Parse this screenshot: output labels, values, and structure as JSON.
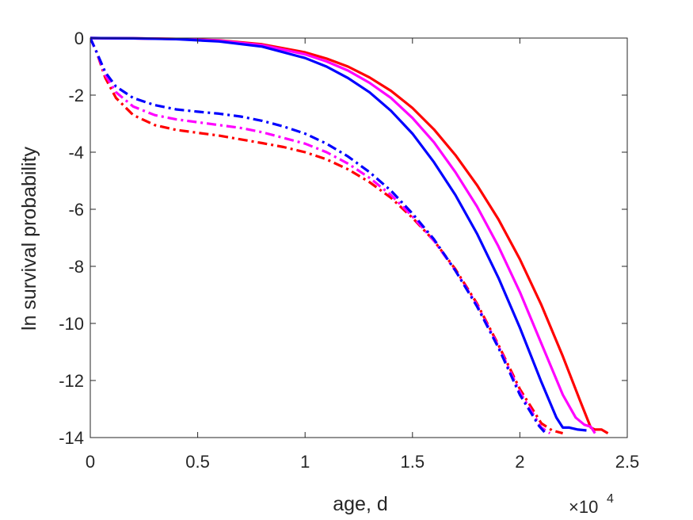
{
  "chart_data": {
    "type": "line",
    "title": "",
    "xlabel": "age, d",
    "ylabel": "ln survival probability",
    "x_exponent_label": {
      "base": "×10",
      "exp": "4"
    },
    "xlim": [
      0,
      25000
    ],
    "ylim": [
      -14,
      0
    ],
    "xticks": [
      0,
      5000,
      10000,
      15000,
      20000,
      25000
    ],
    "xtick_labels": [
      "0",
      "0.5",
      "1",
      "1.5",
      "2",
      "2.5"
    ],
    "yticks": [
      0,
      -2,
      -4,
      -6,
      -8,
      -10,
      -12,
      -14
    ],
    "ytick_labels": [
      "0",
      "-2",
      "-4",
      "-6",
      "-8",
      "-10",
      "-12",
      "-14"
    ],
    "grid": false,
    "series": [
      {
        "color": "#ff0000",
        "style": "solid",
        "points": [
          [
            0,
            0
          ],
          [
            2000,
            -0.01
          ],
          [
            4000,
            -0.03
          ],
          [
            6000,
            -0.08
          ],
          [
            8000,
            -0.22
          ],
          [
            10000,
            -0.5
          ],
          [
            11000,
            -0.72
          ],
          [
            12000,
            -1.0
          ],
          [
            13000,
            -1.38
          ],
          [
            14000,
            -1.85
          ],
          [
            15000,
            -2.45
          ],
          [
            16000,
            -3.2
          ],
          [
            17000,
            -4.1
          ],
          [
            18000,
            -5.15
          ],
          [
            19000,
            -6.35
          ],
          [
            20000,
            -7.75
          ],
          [
            21000,
            -9.35
          ],
          [
            22000,
            -11.15
          ],
          [
            22800,
            -12.7
          ],
          [
            23300,
            -13.65
          ],
          [
            23500,
            -13.72
          ],
          [
            23800,
            -13.72
          ],
          [
            24100,
            -13.85
          ]
        ]
      },
      {
        "color": "#ff00ff",
        "style": "solid",
        "points": [
          [
            0,
            0
          ],
          [
            2000,
            -0.01
          ],
          [
            4000,
            -0.03
          ],
          [
            6000,
            -0.09
          ],
          [
            8000,
            -0.25
          ],
          [
            10000,
            -0.57
          ],
          [
            11000,
            -0.82
          ],
          [
            12000,
            -1.14
          ],
          [
            13000,
            -1.57
          ],
          [
            14000,
            -2.1
          ],
          [
            15000,
            -2.8
          ],
          [
            16000,
            -3.65
          ],
          [
            17000,
            -4.7
          ],
          [
            18000,
            -5.9
          ],
          [
            19000,
            -7.3
          ],
          [
            20000,
            -8.9
          ],
          [
            21000,
            -10.7
          ],
          [
            22000,
            -12.5
          ],
          [
            22600,
            -13.3
          ],
          [
            23000,
            -13.55
          ],
          [
            23300,
            -13.62
          ],
          [
            23500,
            -13.85
          ]
        ]
      },
      {
        "color": "#0000ff",
        "style": "solid",
        "points": [
          [
            0,
            0
          ],
          [
            2000,
            -0.01
          ],
          [
            4000,
            -0.04
          ],
          [
            6000,
            -0.12
          ],
          [
            8000,
            -0.3
          ],
          [
            10000,
            -0.7
          ],
          [
            11000,
            -1.0
          ],
          [
            12000,
            -1.4
          ],
          [
            13000,
            -1.9
          ],
          [
            14000,
            -2.55
          ],
          [
            15000,
            -3.35
          ],
          [
            16000,
            -4.35
          ],
          [
            17000,
            -5.5
          ],
          [
            18000,
            -6.85
          ],
          [
            19000,
            -8.4
          ],
          [
            20000,
            -10.15
          ],
          [
            21000,
            -12.05
          ],
          [
            21700,
            -13.3
          ],
          [
            22000,
            -13.65
          ],
          [
            22300,
            -13.65
          ],
          [
            22700,
            -13.72
          ],
          [
            23100,
            -13.75
          ]
        ]
      },
      {
        "color": "#ff0000",
        "style": "dashdot",
        "points": [
          [
            0,
            0
          ],
          [
            300,
            -0.5
          ],
          [
            700,
            -1.4
          ],
          [
            1200,
            -2.1
          ],
          [
            2000,
            -2.7
          ],
          [
            3000,
            -3.05
          ],
          [
            4000,
            -3.22
          ],
          [
            5000,
            -3.32
          ],
          [
            6000,
            -3.42
          ],
          [
            7000,
            -3.55
          ],
          [
            8000,
            -3.68
          ],
          [
            9000,
            -3.82
          ],
          [
            10000,
            -4.0
          ],
          [
            11000,
            -4.25
          ],
          [
            12000,
            -4.6
          ],
          [
            13000,
            -5.05
          ],
          [
            14000,
            -5.6
          ],
          [
            15000,
            -6.3
          ],
          [
            16000,
            -7.1
          ],
          [
            17000,
            -8.1
          ],
          [
            18000,
            -9.3
          ],
          [
            19000,
            -10.75
          ],
          [
            20000,
            -12.3
          ],
          [
            21000,
            -13.5
          ],
          [
            21500,
            -13.75
          ],
          [
            22000,
            -13.85
          ]
        ]
      },
      {
        "color": "#ff00ff",
        "style": "dashdot",
        "points": [
          [
            0,
            0
          ],
          [
            300,
            -0.5
          ],
          [
            700,
            -1.3
          ],
          [
            1200,
            -1.9
          ],
          [
            2000,
            -2.4
          ],
          [
            3000,
            -2.7
          ],
          [
            4000,
            -2.85
          ],
          [
            5000,
            -2.95
          ],
          [
            6000,
            -3.05
          ],
          [
            7000,
            -3.15
          ],
          [
            8000,
            -3.3
          ],
          [
            9000,
            -3.5
          ],
          [
            10000,
            -3.7
          ],
          [
            11000,
            -4.0
          ],
          [
            12000,
            -4.4
          ],
          [
            13000,
            -4.9
          ],
          [
            14000,
            -5.5
          ],
          [
            15000,
            -6.25
          ],
          [
            16000,
            -7.1
          ],
          [
            17000,
            -8.15
          ],
          [
            18000,
            -9.35
          ],
          [
            19000,
            -10.8
          ],
          [
            20000,
            -12.4
          ],
          [
            21000,
            -13.65
          ],
          [
            21400,
            -13.85
          ]
        ]
      },
      {
        "color": "#0000ff",
        "style": "dashdot",
        "points": [
          [
            0,
            0
          ],
          [
            300,
            -0.5
          ],
          [
            700,
            -1.2
          ],
          [
            1200,
            -1.7
          ],
          [
            2000,
            -2.1
          ],
          [
            3000,
            -2.35
          ],
          [
            4000,
            -2.5
          ],
          [
            5000,
            -2.58
          ],
          [
            6000,
            -2.65
          ],
          [
            7000,
            -2.75
          ],
          [
            8000,
            -2.9
          ],
          [
            9000,
            -3.1
          ],
          [
            10000,
            -3.35
          ],
          [
            11000,
            -3.7
          ],
          [
            12000,
            -4.15
          ],
          [
            13000,
            -4.7
          ],
          [
            14000,
            -5.35
          ],
          [
            15000,
            -6.15
          ],
          [
            16000,
            -7.05
          ],
          [
            17000,
            -8.15
          ],
          [
            18000,
            -9.4
          ],
          [
            19000,
            -10.85
          ],
          [
            20000,
            -12.5
          ],
          [
            20900,
            -13.6
          ],
          [
            21200,
            -13.85
          ]
        ]
      }
    ]
  }
}
